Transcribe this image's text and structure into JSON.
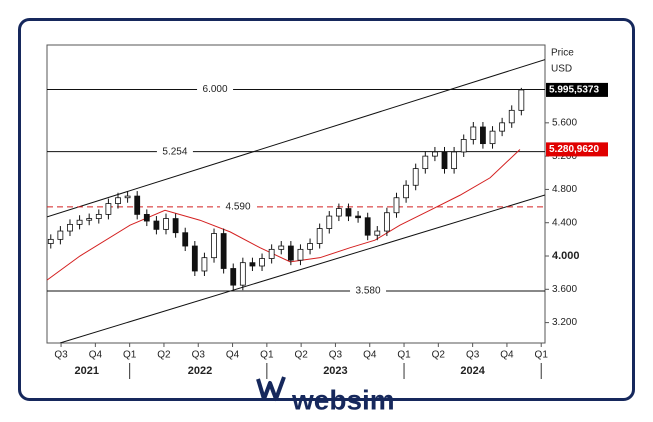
{
  "chart_data": {
    "type": "candlestick",
    "axis_title": "Price",
    "axis_unit": "USD",
    "brand": "websim",
    "xlim": [
      -0.41,
      14.11
    ],
    "ylim": [
      2.955,
      6.535
    ],
    "xticks": [
      {
        "value": 0,
        "label": "Q3"
      },
      {
        "value": 1,
        "label": "Q4"
      },
      {
        "value": 2,
        "label": "Q1"
      },
      {
        "value": 3,
        "label": "Q2"
      },
      {
        "value": 4,
        "label": "Q3"
      },
      {
        "value": 5,
        "label": "Q4"
      },
      {
        "value": 6,
        "label": "Q1"
      },
      {
        "value": 7,
        "label": "Q2"
      },
      {
        "value": 8,
        "label": "Q3"
      },
      {
        "value": 9,
        "label": "Q4"
      },
      {
        "value": 10,
        "label": "Q1"
      },
      {
        "value": 11,
        "label": "Q2"
      },
      {
        "value": 12,
        "label": "Q3"
      },
      {
        "value": 13,
        "label": "Q4"
      },
      {
        "value": 14,
        "label": "Q1"
      }
    ],
    "years": [
      {
        "value": 0.75,
        "label": "2021"
      },
      {
        "value": 4.05,
        "label": "2022"
      },
      {
        "value": 8,
        "label": "2023"
      },
      {
        "value": 12,
        "label": "2024"
      }
    ],
    "yticks": [
      {
        "value": 3.2,
        "label": "3.200"
      },
      {
        "value": 3.6,
        "label": "3.600"
      },
      {
        "value": 4,
        "label": "4.000"
      },
      {
        "value": 4.4,
        "label": "4.400"
      },
      {
        "value": 4.8,
        "label": "4.800"
      },
      {
        "value": 5.2,
        "label": "5.200"
      },
      {
        "value": 5.6,
        "label": "5.600"
      }
    ],
    "x": [
      -0.3,
      -0.02,
      0.26,
      0.54,
      0.82,
      1.1,
      1.38,
      1.66,
      1.94,
      2.22,
      2.5,
      2.78,
      3.06,
      3.34,
      3.62,
      3.9,
      4.18,
      4.46,
      4.74,
      5.02,
      5.3,
      5.58,
      5.86,
      6.14,
      6.42,
      6.7,
      6.98,
      7.26,
      7.54,
      7.82,
      8.1,
      8.38,
      8.66,
      8.94,
      9.22,
      9.5,
      9.78,
      10.06,
      10.34,
      10.62,
      10.9,
      11.18,
      11.46,
      11.74,
      12.02,
      12.3,
      12.58,
      12.86,
      13.14,
      13.42
    ],
    "open": [
      4.15,
      4.2,
      4.3,
      4.38,
      4.43,
      4.45,
      4.5,
      4.63,
      4.7,
      4.72,
      4.5,
      4.42,
      4.32,
      4.45,
      4.28,
      4.12,
      3.82,
      3.98,
      4.27,
      3.85,
      3.65,
      3.92,
      3.88,
      3.97,
      4.08,
      4.12,
      3.95,
      4.08,
      4.15,
      4.33,
      4.48,
      4.57,
      4.48,
      4.46,
      4.25,
      4.3,
      4.52,
      4.7,
      4.85,
      5.05,
      5.2,
      5.25,
      5.05,
      5.25,
      5.4,
      5.55,
      5.35,
      5.5,
      5.6,
      5.75
    ],
    "high": [
      4.26,
      4.36,
      4.44,
      4.49,
      4.51,
      4.56,
      4.69,
      4.76,
      4.78,
      4.78,
      4.56,
      4.48,
      4.51,
      4.51,
      4.34,
      4.18,
      4.04,
      4.33,
      4.33,
      3.91,
      3.98,
      3.98,
      4.03,
      4.14,
      4.18,
      4.18,
      4.14,
      4.21,
      4.39,
      4.54,
      4.63,
      4.63,
      4.54,
      4.52,
      4.36,
      4.58,
      4.76,
      4.91,
      5.11,
      5.26,
      5.31,
      5.31,
      5.31,
      5.46,
      5.61,
      5.61,
      5.56,
      5.66,
      5.81,
      6.02
    ],
    "low": [
      4.09,
      4.14,
      4.24,
      4.32,
      4.37,
      4.39,
      4.44,
      4.57,
      4.64,
      4.44,
      4.36,
      4.26,
      4.26,
      4.22,
      4.06,
      3.76,
      3.76,
      3.92,
      3.79,
      3.59,
      3.59,
      3.82,
      3.82,
      3.91,
      4.02,
      3.89,
      3.89,
      4.02,
      4.09,
      4.27,
      4.42,
      4.42,
      4.4,
      4.19,
      4.19,
      4.24,
      4.46,
      4.64,
      4.79,
      4.99,
      5.14,
      4.99,
      4.99,
      5.19,
      5.34,
      5.29,
      5.29,
      5.44,
      5.54,
      5.69
    ],
    "close": [
      4.2,
      4.3,
      4.38,
      4.43,
      4.45,
      4.5,
      4.63,
      4.7,
      4.72,
      4.5,
      4.42,
      4.32,
      4.45,
      4.28,
      4.12,
      3.82,
      3.98,
      4.27,
      3.85,
      3.65,
      3.92,
      3.88,
      3.97,
      4.08,
      4.12,
      3.95,
      4.08,
      4.15,
      4.33,
      4.48,
      4.57,
      4.48,
      4.46,
      4.25,
      4.3,
      4.52,
      4.7,
      4.85,
      5.05,
      5.2,
      5.25,
      5.05,
      5.25,
      5.4,
      5.55,
      5.35,
      5.5,
      5.6,
      5.75,
      5.995
    ],
    "up_color": "#ffffff",
    "down_color": "#111111",
    "moving_average": {
      "color": "#d42020",
      "x": [
        -0.41,
        0.55,
        2.01,
        3.03,
        4.05,
        4.93,
        5.8,
        6.68,
        7.55,
        8.43,
        9.15,
        9.88,
        10.76,
        11.63,
        12.51,
        13.38
      ],
      "values": [
        3.71,
        4.0,
        4.37,
        4.55,
        4.43,
        4.29,
        4.1,
        3.93,
        3.98,
        4.1,
        4.19,
        4.37,
        4.55,
        4.73,
        4.94,
        5.28
      ]
    },
    "trendlines": [
      {
        "x": [
          -0.41,
          14.11
        ],
        "values": [
          4.47,
          6.36
        ],
        "color": "#111111"
      },
      {
        "x": [
          -0.03,
          14.11
        ],
        "values": [
          2.955,
          4.733
        ],
        "color": "#111111"
      }
    ],
    "levels": [
      {
        "value": 6.0,
        "label": "6.000",
        "color": "#111111",
        "dashed": false
      },
      {
        "value": 5.254,
        "label": "5.254",
        "color": "#111111",
        "dashed": false
      },
      {
        "value": 4.59,
        "label": "4.590",
        "color": "#d42020",
        "dashed": true
      },
      {
        "value": 3.58,
        "label": "3.580",
        "color": "#111111",
        "dashed": false
      }
    ],
    "badges": [
      {
        "value": 5.9955373,
        "label": "5.995,5373",
        "color": "#000000"
      },
      {
        "value": 5.280962,
        "label": "5.280,9620",
        "color": "#e00000"
      }
    ]
  }
}
